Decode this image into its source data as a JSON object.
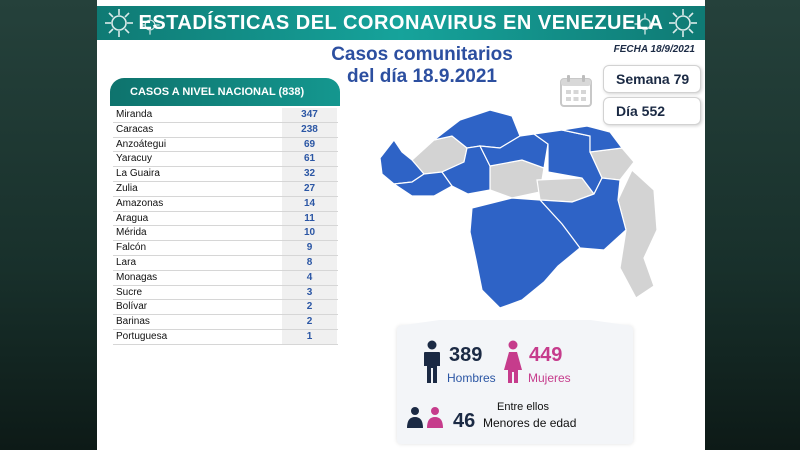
{
  "banner": {
    "title": "ESTADÍSTICAS DEL CORONAVIRUS EN VENEZUELA"
  },
  "date_label": "FECHA 18/9/2021",
  "headline": {
    "line1": "Casos comunitarios",
    "line2": "del día 18.9.2021"
  },
  "week": {
    "label": "Semana 79"
  },
  "day": {
    "label": "Día 552"
  },
  "table": {
    "header": "CASOS A NIVEL NACIONAL (838)",
    "rows": [
      {
        "state": "Miranda",
        "cases": "347"
      },
      {
        "state": "Caracas",
        "cases": "238"
      },
      {
        "state": "Anzoátegui",
        "cases": "69"
      },
      {
        "state": "Yaracuy",
        "cases": "61"
      },
      {
        "state": "La Guaira",
        "cases": "32"
      },
      {
        "state": "Zulia",
        "cases": "27"
      },
      {
        "state": "Amazonas",
        "cases": "14"
      },
      {
        "state": "Aragua",
        "cases": "11"
      },
      {
        "state": "Mérida",
        "cases": "10"
      },
      {
        "state": "Falcón",
        "cases": "9"
      },
      {
        "state": "Lara",
        "cases": "8"
      },
      {
        "state": "Monagas",
        "cases": "4"
      },
      {
        "state": "Sucre",
        "cases": "3"
      },
      {
        "state": "Bolívar",
        "cases": "2"
      },
      {
        "state": "Barinas",
        "cases": "2"
      },
      {
        "state": "Portuguesa",
        "cases": "1"
      }
    ]
  },
  "stats": {
    "men_count": "389",
    "men_label": "Hombres",
    "women_count": "449",
    "women_label": "Mujeres",
    "between_label": "Entre ellos",
    "minors_count": "46",
    "minors_label": "Menores de edad"
  },
  "colors": {
    "banner": "#14978f",
    "headline": "#2c4fa0",
    "map_affected": "#2e63c6",
    "map_unaffected": "#d3d3d3",
    "men": "#1b2a44",
    "women": "#c63c8c"
  },
  "icons": {
    "virus": "virus-icon",
    "calendar": "calendar-icon",
    "man": "man-icon",
    "woman": "woman-icon",
    "children": "children-icon"
  }
}
